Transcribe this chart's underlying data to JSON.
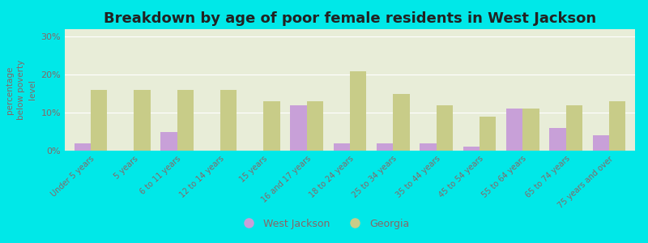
{
  "title": "Breakdown by age of poor female residents in West Jackson",
  "ylabel": "percentage\nbelow poverty\nlevel",
  "categories": [
    "Under 5 years",
    "5 years",
    "6 to 11 years",
    "12 to 14 years",
    "15 years",
    "16 and 17 years",
    "18 to 24 years",
    "25 to 34 years",
    "35 to 44 years",
    "45 to 54 years",
    "55 to 64 years",
    "65 to 74 years",
    "75 years and over"
  ],
  "west_jackson": [
    2,
    0,
    5,
    0,
    0,
    12,
    2,
    2,
    2,
    1,
    11,
    6,
    4
  ],
  "georgia": [
    16,
    16,
    16,
    16,
    13,
    13,
    21,
    15,
    12,
    9,
    11,
    12,
    13
  ],
  "west_jackson_color": "#c8a0d8",
  "georgia_color": "#c8cc88",
  "background_color": "#00e8e8",
  "plot_bg": "#e8edd8",
  "ylim": [
    0,
    32
  ],
  "yticks": [
    0,
    10,
    20,
    30
  ],
  "ytick_labels": [
    "0%",
    "10%",
    "20%",
    "30%"
  ],
  "title_fontsize": 13,
  "legend_west_jackson": "West Jackson",
  "legend_georgia": "Georgia",
  "bar_width": 0.38,
  "tick_label_color": "#886666",
  "ylabel_color": "#886666",
  "title_color": "#222222"
}
